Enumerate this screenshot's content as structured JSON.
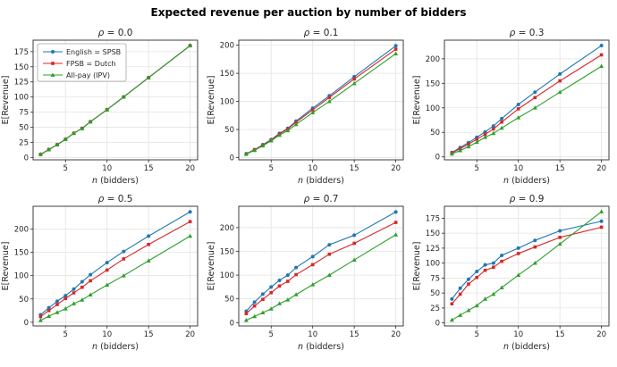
{
  "figure": {
    "title": "Expected revenue per auction by number of bidders"
  },
  "axes": {
    "xlabel": "n (bidders)",
    "ylabel": "E[Revenue]",
    "xticks": [
      5,
      10,
      15,
      20
    ],
    "xlim": [
      1.1,
      20.9
    ],
    "grid": true,
    "colors": {
      "english_spsb": "#1f77b4",
      "fpsb_dutch": "#d62728",
      "allpay_ipv": "#2ca02c",
      "gridline": "#e3e3e3",
      "spine": "#2b2b2b",
      "text": "#262626"
    }
  },
  "legend": {
    "position": "upper-left-of-first-subplot",
    "entries": [
      {
        "label": "English = SPSB",
        "color": "#1f77b4",
        "marker": "circle"
      },
      {
        "label": "FPSB = Dutch",
        "color": "#d62728",
        "marker": "square"
      },
      {
        "label": "All-pay (IPV)",
        "color": "#2ca02c",
        "marker": "triangle"
      }
    ]
  },
  "chart_data": [
    {
      "type": "line",
      "title": "ρ = 0.0",
      "x": [
        2,
        3,
        4,
        5,
        6,
        7,
        8,
        10,
        12,
        15,
        20
      ],
      "series": [
        {
          "name": "English = SPSB",
          "color": "#1f77b4",
          "marker": "circle",
          "values": [
            5,
            13,
            21,
            30,
            40,
            48,
            59,
            79,
            100,
            132,
            185
          ]
        },
        {
          "name": "FPSB = Dutch",
          "color": "#d62728",
          "marker": "square",
          "values": [
            5,
            13,
            21,
            30,
            40,
            48,
            59,
            79,
            100,
            132,
            185
          ]
        },
        {
          "name": "All-pay (IPV)",
          "color": "#2ca02c",
          "marker": "triangle",
          "values": [
            5,
            13,
            21,
            30,
            40,
            48,
            59,
            79,
            100,
            132,
            185
          ]
        }
      ],
      "ylim": [
        -4,
        194
      ],
      "yticks": [
        0,
        25,
        50,
        75,
        100,
        125,
        150,
        175
      ],
      "show_legend": true
    },
    {
      "type": "line",
      "title": "ρ = 0.1",
      "x": [
        2,
        3,
        4,
        5,
        6,
        7,
        8,
        10,
        12,
        15,
        20
      ],
      "series": [
        {
          "name": "English = SPSB",
          "color": "#1f77b4",
          "marker": "circle",
          "values": [
            7,
            14,
            23,
            32,
            43,
            52,
            65,
            88,
            110,
            144,
            199
          ]
        },
        {
          "name": "FPSB = Dutch",
          "color": "#d62728",
          "marker": "square",
          "values": [
            6,
            14,
            22,
            31,
            42,
            51,
            63,
            85,
            107,
            140,
            193
          ]
        },
        {
          "name": "All-pay (IPV)",
          "color": "#2ca02c",
          "marker": "triangle",
          "values": [
            6,
            13,
            21,
            30,
            40,
            48,
            59,
            80,
            100,
            132,
            185
          ]
        }
      ],
      "ylim": [
        -4,
        209
      ],
      "yticks": [
        0,
        50,
        100,
        150,
        200
      ],
      "show_legend": false
    },
    {
      "type": "line",
      "title": "ρ = 0.3",
      "x": [
        2,
        3,
        4,
        5,
        6,
        7,
        8,
        10,
        12,
        15,
        20
      ],
      "series": [
        {
          "name": "English = SPSB",
          "color": "#1f77b4",
          "marker": "circle",
          "values": [
            9,
            19,
            29,
            40,
            51,
            63,
            78,
            107,
            132,
            169,
            227
          ]
        },
        {
          "name": "FPSB = Dutch",
          "color": "#d62728",
          "marker": "square",
          "values": [
            8,
            17,
            26,
            36,
            46,
            57,
            71,
            98,
            121,
            155,
            208
          ]
        },
        {
          "name": "All-pay (IPV)",
          "color": "#2ca02c",
          "marker": "triangle",
          "values": [
            6,
            13,
            21,
            30,
            40,
            48,
            59,
            80,
            100,
            132,
            185
          ]
        }
      ],
      "ylim": [
        -6,
        238
      ],
      "yticks": [
        0,
        50,
        100,
        150,
        200
      ],
      "show_legend": false
    },
    {
      "type": "line",
      "title": "ρ = 0.5",
      "x": [
        2,
        3,
        4,
        5,
        6,
        7,
        8,
        10,
        12,
        15,
        20
      ],
      "series": [
        {
          "name": "English = SPSB",
          "color": "#1f77b4",
          "marker": "circle",
          "values": [
            16,
            31,
            45,
            57,
            71,
            87,
            102,
            128,
            152,
            185,
            237
          ]
        },
        {
          "name": "FPSB = Dutch",
          "color": "#d62728",
          "marker": "square",
          "values": [
            12,
            25,
            38,
            51,
            63,
            75,
            89,
            112,
            136,
            167,
            216
          ]
        },
        {
          "name": "All-pay (IPV)",
          "color": "#2ca02c",
          "marker": "triangle",
          "values": [
            4,
            13,
            21,
            29,
            40,
            48,
            59,
            80,
            100,
            132,
            185
          ]
        }
      ],
      "ylim": [
        -8,
        249
      ],
      "yticks": [
        0,
        50,
        100,
        150,
        200
      ],
      "show_legend": false
    },
    {
      "type": "line",
      "title": "ρ = 0.7",
      "x": [
        2,
        3,
        4,
        5,
        6,
        7,
        8,
        10,
        12,
        15,
        20
      ],
      "series": [
        {
          "name": "English = SPSB",
          "color": "#1f77b4",
          "marker": "circle",
          "values": [
            24,
            43,
            60,
            75,
            89,
            100,
            116,
            139,
            164,
            184,
            233
          ]
        },
        {
          "name": "FPSB = Dutch",
          "color": "#d62728",
          "marker": "square",
          "values": [
            19,
            35,
            49,
            63,
            77,
            87,
            101,
            122,
            144,
            167,
            211
          ]
        },
        {
          "name": "All-pay (IPV)",
          "color": "#2ca02c",
          "marker": "triangle",
          "values": [
            5,
            13,
            21,
            29,
            40,
            48,
            59,
            80,
            100,
            132,
            185
          ]
        }
      ],
      "ylim": [
        -7,
        245
      ],
      "yticks": [
        0,
        50,
        100,
        150,
        200
      ],
      "show_legend": false
    },
    {
      "type": "line",
      "title": "ρ = 0.9",
      "x": [
        2,
        3,
        4,
        5,
        6,
        7,
        8,
        10,
        12,
        15,
        20
      ],
      "series": [
        {
          "name": "English = SPSB",
          "color": "#1f77b4",
          "marker": "circle",
          "values": [
            40,
            58,
            73,
            86,
            97,
            100,
            113,
            125,
            138,
            154,
            170
          ]
        },
        {
          "name": "FPSB = Dutch",
          "color": "#d62728",
          "marker": "square",
          "values": [
            32,
            48,
            65,
            76,
            88,
            93,
            103,
            116,
            127,
            143,
            160
          ]
        },
        {
          "name": "All-pay (IPV)",
          "color": "#2ca02c",
          "marker": "triangle",
          "values": [
            5,
            13,
            21,
            29,
            40,
            48,
            59,
            80,
            100,
            132,
            186
          ]
        }
      ],
      "ylim": [
        -5,
        195
      ],
      "yticks": [
        0,
        25,
        50,
        75,
        100,
        125,
        150,
        175
      ],
      "show_legend": false
    }
  ]
}
